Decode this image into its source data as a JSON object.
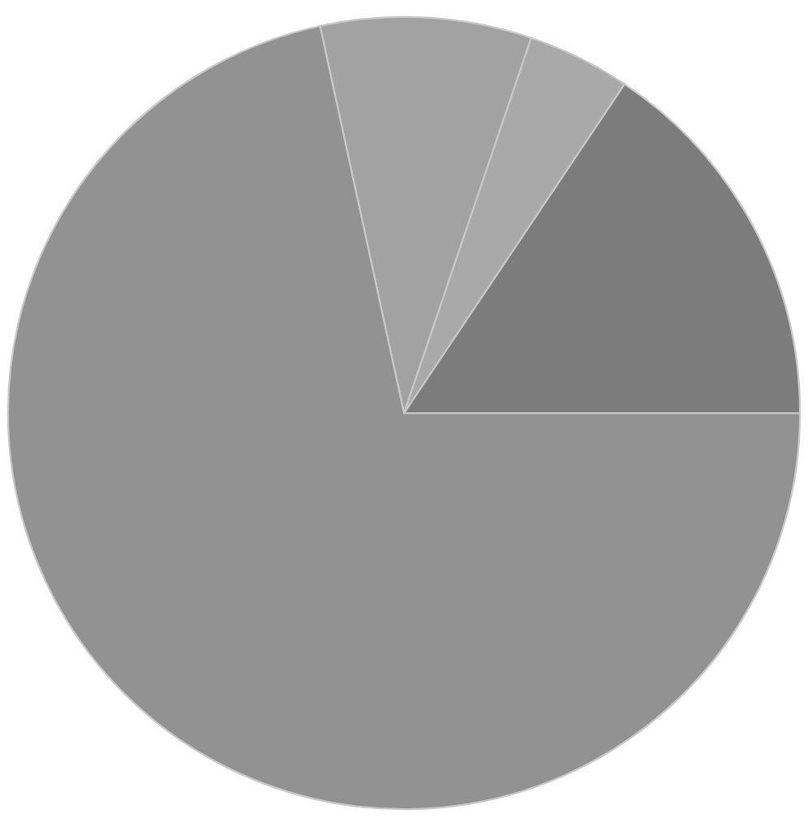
{
  "chart_data": {
    "type": "pie",
    "categories": [
      null,
      null,
      null,
      null
    ],
    "values": [
      15.6,
      4.2,
      8.6,
      71.6
    ],
    "colors": [
      "#7c7c7c",
      "#a9a9a9",
      "#a2a2a2",
      "#929292"
    ]
  }
}
